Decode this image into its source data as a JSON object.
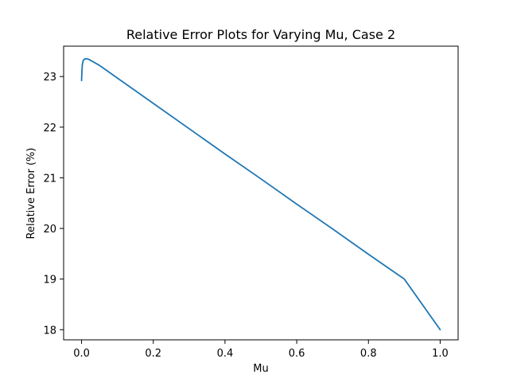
{
  "chart_data": {
    "type": "line",
    "title": "Relative Error Plots for Varying Mu, Case 2",
    "xlabel": "Mu",
    "ylabel": "Relative Error (%)",
    "xlim": [
      -0.05,
      1.05
    ],
    "ylim": [
      17.8,
      23.6
    ],
    "xticks": [
      0.0,
      0.2,
      0.4,
      0.6,
      0.8,
      1.0
    ],
    "xtick_labels": [
      "0.0",
      "0.2",
      "0.4",
      "0.6",
      "0.8",
      "1.0"
    ],
    "yticks": [
      18,
      19,
      20,
      21,
      22,
      23
    ],
    "ytick_labels": [
      "18",
      "19",
      "20",
      "21",
      "22",
      "23"
    ],
    "grid": false,
    "colors": {
      "line": "#1f77b4",
      "axes": "#000000"
    },
    "series": [
      {
        "x": [
          0.0,
          0.001,
          0.002,
          0.004,
          0.007,
          0.01,
          0.015,
          0.02,
          0.03,
          0.05,
          0.1,
          0.2,
          0.3,
          0.4,
          0.5,
          0.6,
          0.7,
          0.8,
          0.9,
          1.0
        ],
        "values": [
          22.92,
          23.1,
          23.22,
          23.3,
          23.34,
          23.35,
          23.35,
          23.34,
          23.3,
          23.22,
          22.97,
          22.47,
          21.97,
          21.47,
          20.98,
          20.48,
          19.99,
          19.49,
          19.0,
          18.0
        ]
      }
    ]
  }
}
